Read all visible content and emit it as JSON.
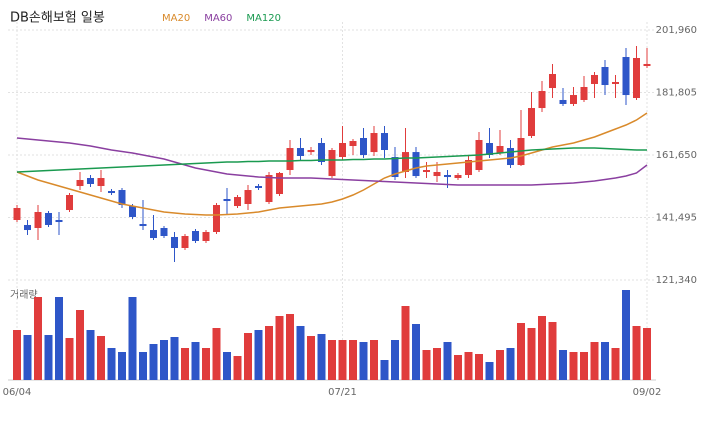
{
  "chart_data": {
    "type": "candlestick",
    "title": "DB손해보험 일봉",
    "categories": [
      "06/04",
      null,
      null,
      null,
      null,
      null,
      null,
      null,
      null,
      null,
      null,
      null,
      null,
      null,
      null,
      null,
      null,
      null,
      null,
      null,
      null,
      null,
      null,
      null,
      null,
      null,
      null,
      null,
      null,
      null,
      null,
      "07/21",
      null,
      null,
      null,
      null,
      null,
      null,
      null,
      null,
      null,
      null,
      null,
      null,
      null,
      null,
      null,
      null,
      null,
      null,
      null,
      null,
      null,
      null,
      null,
      null,
      null,
      null,
      null,
      null,
      "09/02"
    ],
    "ohlc": [
      [
        140690,
        145520,
        140040,
        144560
      ],
      [
        139080,
        140690,
        135850,
        137460
      ],
      [
        138110,
        145520,
        134240,
        143270
      ],
      [
        142950,
        143600,
        138430,
        139080
      ],
      [
        140690,
        143270,
        135850,
        140040
      ],
      [
        143910,
        149390,
        143270,
        148750
      ],
      [
        151650,
        156170,
        150360,
        153590
      ],
      [
        154230,
        155200,
        151330,
        152300
      ],
      [
        151650,
        156810,
        149720,
        154230
      ],
      [
        150040,
        150680,
        148750,
        149390
      ],
      [
        150360,
        151010,
        144560,
        145520
      ],
      [
        145200,
        145850,
        140980,
        141660
      ],
      [
        139400,
        147140,
        137460,
        138750
      ],
      [
        137460,
        142300,
        134240,
        134880
      ],
      [
        138110,
        138750,
        134880,
        135530
      ],
      [
        135210,
        136820,
        127140,
        131660
      ],
      [
        131660,
        136170,
        131010,
        135530
      ],
      [
        137140,
        137790,
        133270,
        133920
      ],
      [
        133920,
        137460,
        133270,
        136820
      ],
      [
        136820,
        146170,
        136170,
        145520
      ],
      [
        147460,
        150990,
        142300,
        146810
      ],
      [
        145200,
        148750,
        144560,
        148100
      ],
      [
        145850,
        151980,
        143910,
        150360
      ],
      [
        151650,
        152300,
        150360,
        151010
      ],
      [
        146490,
        156170,
        145850,
        155200
      ],
      [
        149070,
        156170,
        148430,
        155850
      ],
      [
        156810,
        166490,
        155200,
        163900
      ],
      [
        163900,
        167130,
        160040,
        161330
      ],
      [
        162600,
        164230,
        161650,
        163260
      ],
      [
        165520,
        167130,
        158420,
        159390
      ],
      [
        154870,
        163900,
        154230,
        163260
      ],
      [
        161000,
        170990,
        160040,
        165520
      ],
      [
        164550,
        166810,
        161650,
        166160
      ],
      [
        167130,
        170350,
        160680,
        161650
      ],
      [
        162600,
        170990,
        161330,
        168740
      ],
      [
        168740,
        170990,
        160680,
        163260
      ],
      [
        161000,
        164230,
        153590,
        154550
      ],
      [
        156170,
        170350,
        154230,
        162600
      ],
      [
        162600,
        164230,
        154230,
        154870
      ],
      [
        156170,
        159390,
        154230,
        156810
      ],
      [
        154870,
        159390,
        152940,
        156170
      ],
      [
        155200,
        156810,
        151010,
        154550
      ],
      [
        154230,
        155850,
        153590,
        155200
      ],
      [
        155200,
        161650,
        154230,
        160040
      ],
      [
        156810,
        169070,
        156170,
        166490
      ],
      [
        165520,
        170350,
        160680,
        161650
      ],
      [
        162290,
        169710,
        161650,
        164550
      ],
      [
        163900,
        166490,
        157460,
        158420
      ],
      [
        158420,
        176160,
        158100,
        167130
      ],
      [
        167780,
        181960,
        167130,
        176800
      ],
      [
        176800,
        185510,
        175510,
        182290
      ],
      [
        183250,
        191000,
        180030,
        187770
      ],
      [
        179390,
        183250,
        177460,
        178100
      ],
      [
        178100,
        183580,
        177460,
        180990
      ],
      [
        179390,
        187130,
        178750,
        183580
      ],
      [
        184550,
        188410,
        180030,
        187450
      ],
      [
        190030,
        192290,
        180990,
        184220
      ],
      [
        184550,
        187450,
        180030,
        185190
      ],
      [
        193250,
        196150,
        177780,
        180990
      ],
      [
        180030,
        196800,
        179390,
        192930
      ],
      [
        190350,
        196150,
        189700,
        191000
      ]
    ],
    "up_color": "#e03c3c",
    "down_color": "#2e56c8",
    "series": [
      {
        "name": "MA20",
        "color": "#d98a2b",
        "values": [
          156170,
          154880,
          153590,
          152620,
          151650,
          150680,
          149720,
          148750,
          147780,
          146810,
          145850,
          145200,
          144560,
          143910,
          143270,
          142940,
          142620,
          142460,
          142300,
          142300,
          142460,
          142620,
          142940,
          143270,
          143910,
          144560,
          144880,
          145200,
          145520,
          145850,
          146490,
          147460,
          148750,
          150360,
          152300,
          154230,
          155520,
          156490,
          157460,
          158100,
          158420,
          158750,
          159070,
          159390,
          159720,
          160040,
          160360,
          160680,
          161330,
          162290,
          163260,
          164230,
          164880,
          165520,
          166490,
          167450,
          168740,
          170030,
          171320,
          172940,
          175200
        ]
      },
      {
        "name": "MA60",
        "color": "#8a3fa0",
        "values": [
          167130,
          166800,
          166490,
          166160,
          165840,
          165520,
          165030,
          164550,
          163900,
          163260,
          162780,
          162290,
          161650,
          161000,
          160360,
          159390,
          158420,
          157460,
          156810,
          156170,
          155520,
          155200,
          154880,
          154550,
          154390,
          154230,
          154230,
          154230,
          154230,
          154070,
          153910,
          153740,
          153590,
          153420,
          153260,
          153100,
          152940,
          152780,
          152620,
          152460,
          152300,
          152130,
          151970,
          151970,
          151970,
          151970,
          151970,
          151970,
          151970,
          151970,
          152130,
          152300,
          152460,
          152620,
          152940,
          153260,
          153740,
          154230,
          154880,
          155850,
          158420
        ]
      },
      {
        "name": "MA120",
        "color": "#1a9a50",
        "values": [
          156170,
          156330,
          156490,
          156650,
          156810,
          156970,
          157140,
          157300,
          157460,
          157620,
          157780,
          157940,
          158100,
          158260,
          158420,
          158590,
          158750,
          158910,
          159070,
          159230,
          159390,
          159390,
          159550,
          159550,
          159720,
          159720,
          159720,
          159880,
          159880,
          160040,
          160040,
          160040,
          160200,
          160200,
          160360,
          160360,
          160520,
          160680,
          160680,
          160840,
          161000,
          161170,
          161330,
          161490,
          161650,
          161970,
          162290,
          162620,
          162940,
          163260,
          163420,
          163580,
          163740,
          163900,
          163900,
          163900,
          163740,
          163580,
          163420,
          163260,
          163260
        ]
      }
    ],
    "volume": {
      "label": "거래량",
      "values": [
        50,
        45,
        83,
        45,
        83,
        42,
        70,
        50,
        44,
        32,
        28,
        83,
        28,
        36,
        40,
        43,
        32,
        38,
        32,
        52,
        28,
        24,
        47,
        50,
        54,
        64,
        66,
        54,
        44,
        46,
        40,
        40,
        40,
        38,
        40,
        20,
        40,
        74,
        56,
        30,
        32,
        38,
        25,
        28,
        26,
        18,
        30,
        32,
        57,
        52,
        64,
        58,
        30,
        28,
        28,
        38,
        38,
        32,
        90,
        54,
        52
      ]
    },
    "ylim": [
      121340,
      201960
    ],
    "yticks": [
      {
        "value": 201960,
        "label": "201,960"
      },
      {
        "value": 181805,
        "label": "181,805"
      },
      {
        "value": 161650,
        "label": "161,650"
      },
      {
        "value": 141495,
        "label": "141,495"
      },
      {
        "value": 121340,
        "label": "121,340"
      }
    ],
    "grid": true
  }
}
